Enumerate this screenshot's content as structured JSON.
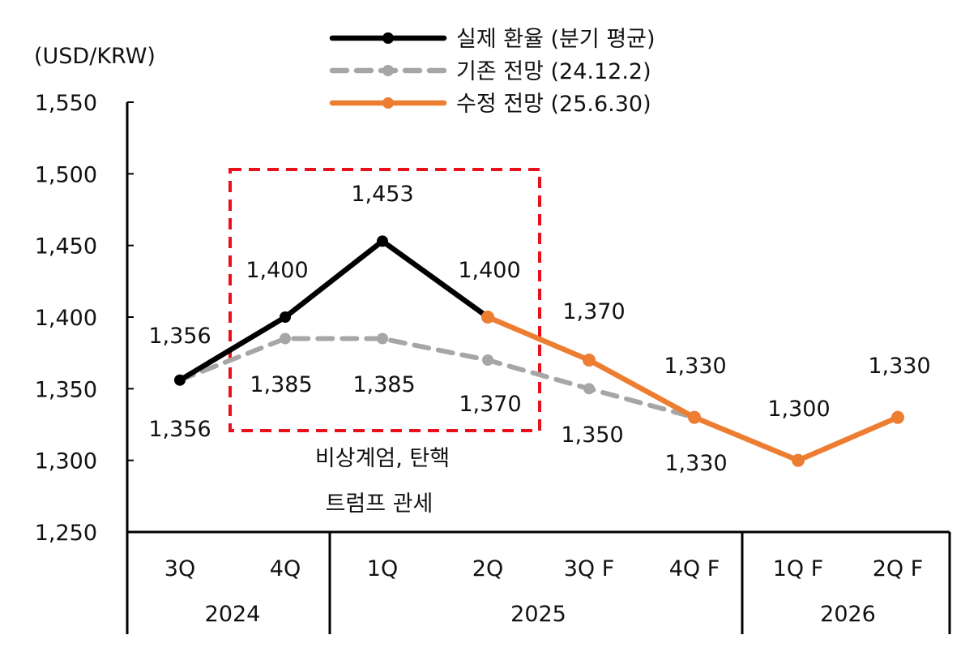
{
  "chart_data": {
    "type": "line",
    "unit_label": "(USD/KRW)",
    "categories": [
      "3Q",
      "4Q",
      "1Q",
      "2Q",
      "3Q F",
      "4Q F",
      "1Q F",
      "2Q F"
    ],
    "year_groups": [
      {
        "label": "2024",
        "count": 2
      },
      {
        "label": "2025",
        "count": 4
      },
      {
        "label": "2026",
        "count": 2
      }
    ],
    "ylim": [
      1250,
      1550
    ],
    "yticks": [
      "1,250",
      "1,300",
      "1,350",
      "1,400",
      "1,450",
      "1,500",
      "1,550"
    ],
    "series": [
      {
        "name": "실제 환율 (분기 평균)",
        "color": "#000000",
        "style": "solid",
        "values": [
          1356,
          1400,
          1453,
          1400,
          null,
          null,
          null,
          null
        ],
        "labels": [
          "1,356",
          "1,400",
          "1,453",
          "1,400",
          null,
          null,
          null,
          null
        ]
      },
      {
        "name": "기존 전망 (24.12.2)",
        "color": "#a6a6a6",
        "style": "dashed",
        "values": [
          1356,
          1385,
          1385,
          1370,
          1350,
          1330,
          null,
          null
        ],
        "labels": [
          "1,356",
          "1,385",
          "1,385",
          "1,370",
          "1,350",
          "1,330",
          null,
          null
        ]
      },
      {
        "name": "수정 전망 (25.6.30)",
        "color": "#ed7d31",
        "style": "solid",
        "values": [
          null,
          null,
          null,
          1400,
          1370,
          1330,
          1300,
          1330
        ],
        "labels": [
          null,
          null,
          null,
          null,
          "1,370",
          "1,330",
          "1,300",
          "1,330"
        ]
      }
    ],
    "annotation": {
      "box_color": "#e8101a",
      "lines": [
        "비상계엄, 탄핵",
        "트럼프 관세"
      ]
    },
    "grid": false,
    "legend_position": "top-center"
  }
}
